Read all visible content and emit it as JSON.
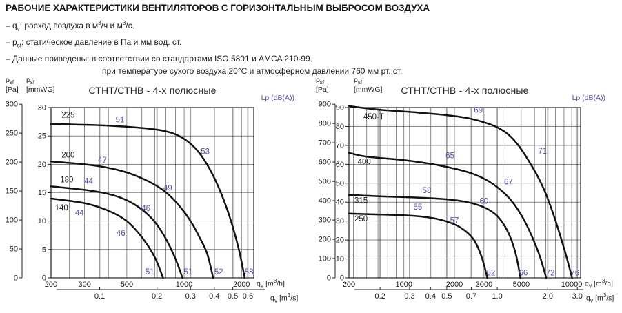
{
  "header": {
    "title": "РАБОЧИЕ ХАРАКТЕРИСТИКИ ВЕНТИЛЯТОРОВ С ГОРИЗОНТАЛЬНЫМ ВЫБРОСОМ ВОЗДУХА",
    "bullets": [
      "&ndash; q<sub>v</sub>: расход воздуха в м<sup>3</sup>/ч и м<sup>3</sup>/с.",
      "&ndash; p<sub>sf</sub>: статическое давление в Па и мм вод. ст.",
      "&ndash; Данные приведены: в соответствии со стандартами ISO 5801 и AMCA 210-99.",
      "при температуре сухого воздуха 20°С и атмосферном давлении 760 мм рт. ст."
    ]
  },
  "colors": {
    "accent_blue": "#5050a0",
    "curve": "#121212",
    "grid": "#3c3c3c",
    "grid_gray": "#9c9c9c",
    "axis": "#222222",
    "text": "#1b1b1b"
  },
  "chart_data": [
    {
      "id": "left",
      "type": "line",
      "title": "СТНТ/СТНВ - 4-х полюсные",
      "lp_label": "Lp (dB(A))",
      "y_pa_header": "p<sub>sf</sub><br>[Pa]",
      "y_mm_header": "p<sub>sf</sub><br>[mmWG]",
      "x_unit_h": "q<sub>v</sub> [m<sup>3</sup>/h]",
      "x_unit_s": "q<sub>v</sub> [m<sup>3</sup>/s]",
      "axes": {
        "x_scale": "log",
        "x_range": [
          200,
          2320
        ],
        "x_ticks_m3h": [
          200,
          300,
          500,
          1000,
          2000
        ],
        "x_ticks_m3s": [
          "0.1",
          "0.2",
          "0.3",
          "0.4",
          "0.5",
          "0.6"
        ],
        "y_pa_ticks": [
          300,
          250,
          200,
          150,
          100,
          50,
          0
        ],
        "y_mmwg_ticks": [
          30,
          25,
          20,
          15,
          10,
          5,
          0
        ],
        "mmwg_max": 30
      },
      "grid": {
        "v_minor_m3h": [
          250,
          300,
          400,
          500,
          600,
          700,
          800,
          900,
          1000,
          2000
        ],
        "v_gray_m3h": [
          360,
          720,
          1080,
          1440,
          1800,
          2160
        ],
        "h_mmwg": [
          5,
          10,
          15,
          20,
          25
        ]
      },
      "series": [
        {
          "name": "225",
          "name_pos": [
            246,
            281
          ],
          "points": [
            [
              200,
              266
            ],
            [
              400,
              263
            ],
            [
              600,
              259
            ],
            [
              750,
              255
            ],
            [
              900,
              248
            ],
            [
              1050,
              235
            ],
            [
              1200,
              216
            ],
            [
              1350,
              190
            ],
            [
              1500,
              160
            ],
            [
              1650,
              126
            ],
            [
              1800,
              88
            ],
            [
              1950,
              45
            ],
            [
              2080,
              0
            ]
          ],
          "noise_labels": [
            {
              "text": "51",
              "x": 460,
              "y": 273
            },
            {
              "text": "53",
              "x": 1290,
              "y": 218
            },
            {
              "text": "58",
              "x": 2190,
              "y": 10
            }
          ]
        },
        {
          "name": "200",
          "name_pos": [
            246,
            212
          ],
          "points": [
            [
              200,
              201
            ],
            [
              300,
              196
            ],
            [
              400,
              190
            ],
            [
              500,
              182
            ],
            [
              600,
              172
            ],
            [
              700,
              161
            ],
            [
              800,
              148
            ],
            [
              900,
              132
            ],
            [
              1000,
              114
            ],
            [
              1100,
              94
            ],
            [
              1200,
              71
            ],
            [
              1320,
              42
            ],
            [
              1420,
              0
            ]
          ],
          "noise_labels": [
            {
              "text": "47",
              "x": 372,
              "y": 203
            },
            {
              "text": "49",
              "x": 820,
              "y": 155
            },
            {
              "text": "52",
              "x": 1520,
              "y": 10
            }
          ]
        },
        {
          "name": "180",
          "name_pos": [
            242,
            169
          ],
          "points": [
            [
              200,
              158
            ],
            [
              300,
              152
            ],
            [
              400,
              145
            ],
            [
              500,
              134
            ],
            [
              600,
              118
            ],
            [
              700,
              97
            ],
            [
              800,
              68
            ],
            [
              900,
              33
            ],
            [
              980,
              0
            ]
          ],
          "noise_labels": [
            {
              "text": "44",
              "x": 315,
              "y": 167
            },
            {
              "text": "46",
              "x": 630,
              "y": 120
            },
            {
              "text": "51",
              "x": 1050,
              "y": 10
            }
          ]
        },
        {
          "name": "140",
          "name_pos": [
            227,
            121
          ],
          "points": [
            [
              200,
              137
            ],
            [
              300,
              129
            ],
            [
              400,
              116
            ],
            [
              500,
              98
            ],
            [
              600,
              70
            ],
            [
              700,
              36
            ],
            [
              775,
              0
            ]
          ],
          "noise_labels": [
            {
              "text": "44",
              "x": 282,
              "y": 112
            },
            {
              "text": "46",
              "x": 465,
              "y": 77
            },
            {
              "text": "51",
              "x": 660,
              "y": 10
            }
          ]
        }
      ]
    },
    {
      "id": "right",
      "type": "line",
      "title": "СТНТ/СТНВ - 4-х полюсные",
      "lp_label": "Lp (dB(A))",
      "y_pa_header": "p<sub>sf</sub><br>[Pa]",
      "y_mm_header": "p<sub>sf</sub><br>[mmWG]",
      "x_unit_h": "q<sub>v</sub> [m<sup>3</sup>/h]",
      "x_unit_s": "q<sub>v</sub> [m<sup>3</sup>/s]",
      "axes": {
        "x_scale": "log",
        "x_range": [
          470,
          11300
        ],
        "x_edge_label": "200",
        "x_ticks_m3h": [
          {
            "v": 200,
            "edge": true
          },
          1000,
          2000,
          3000,
          5000,
          10000
        ],
        "x_ticks_m3s": [
          "0.2",
          "0.3",
          "0.4",
          "0.5",
          "0.7",
          "1.0",
          "2.0",
          "3.0"
        ],
        "y_pa_ticks": [
          900,
          800,
          700,
          600,
          500,
          400,
          300,
          200,
          100,
          0
        ],
        "y_mmwg_ticks": [
          90,
          80,
          70,
          60,
          50,
          40,
          30,
          20,
          10,
          0
        ],
        "mmwg_max": 90
      },
      "grid": {
        "v_minor_m3h": [
          500,
          600,
          700,
          800,
          900,
          1000,
          2000,
          3000,
          4000,
          5000,
          6000,
          7000,
          8000,
          9000,
          10000
        ],
        "v_gray_m3h": [
          720,
          1080,
          1440,
          1800,
          2520,
          3600,
          7200,
          10800
        ],
        "h_mmwg": [
          10,
          20,
          30,
          40,
          50,
          60,
          70,
          80
        ]
      },
      "series": [
        {
          "name": "450-T",
          "name_pos": [
            660,
            835
          ],
          "points": [
            [
              200,
              890
            ],
            [
              700,
              872
            ],
            [
              1200,
              857
            ],
            [
              1800,
              843
            ],
            [
              2400,
              828
            ],
            [
              3000,
              806
            ],
            [
              3600,
              780
            ],
            [
              4200,
              742
            ],
            [
              4800,
              688
            ],
            [
              5400,
              622
            ],
            [
              6100,
              545
            ],
            [
              6900,
              450
            ],
            [
              7700,
              340
            ],
            [
              8500,
              225
            ],
            [
              9300,
              110
            ],
            [
              10050,
              0
            ]
          ],
          "noise_labels": [
            {
              "text": "69",
              "x": 2780,
              "y": 868
            },
            {
              "text": "71",
              "x": 6700,
              "y": 655
            },
            {
              "text": "76",
              "x": 10450,
              "y": 25
            }
          ]
        },
        {
          "name": "400",
          "name_pos": [
            580,
            601
          ],
          "points": [
            [
              200,
              648
            ],
            [
              600,
              628
            ],
            [
              1000,
              610
            ],
            [
              1500,
              588
            ],
            [
              2000,
              566
            ],
            [
              2500,
              543
            ],
            [
              3000,
              514
            ],
            [
              3500,
              478
            ],
            [
              4000,
              436
            ],
            [
              4500,
              386
            ],
            [
              5000,
              326
            ],
            [
              5500,
              258
            ],
            [
              6000,
              184
            ],
            [
              6500,
              104
            ],
            [
              7050,
              0
            ]
          ],
          "noise_labels": [
            {
              "text": "65",
              "x": 1880,
              "y": 632
            },
            {
              "text": "67",
              "x": 4200,
              "y": 497
            },
            {
              "text": "72",
              "x": 7450,
              "y": 25
            }
          ]
        },
        {
          "name": "315",
          "name_pos": [
            555,
            400
          ],
          "points": [
            [
              200,
              430
            ],
            [
              700,
              423
            ],
            [
              1200,
              416
            ],
            [
              1800,
              407
            ],
            [
              2400,
              392
            ],
            [
              3000,
              366
            ],
            [
              3500,
              330
            ],
            [
              3900,
              282
            ],
            [
              4300,
              212
            ],
            [
              4650,
              120
            ],
            [
              4950,
              0
            ]
          ],
          "noise_labels": [
            {
              "text": "58",
              "x": 1370,
              "y": 452
            },
            {
              "text": "60",
              "x": 3000,
              "y": 396
            },
            {
              "text": "66",
              "x": 5150,
              "y": 25
            }
          ]
        },
        {
          "name": "250",
          "name_pos": [
            555,
            305
          ],
          "points": [
            [
              200,
              333
            ],
            [
              600,
              330
            ],
            [
              1000,
              324
            ],
            [
              1400,
              313
            ],
            [
              1800,
              292
            ],
            [
              2200,
              258
            ],
            [
              2600,
              200
            ],
            [
              2900,
              110
            ],
            [
              3140,
              0
            ]
          ],
          "noise_labels": [
            {
              "text": "55",
              "x": 1210,
              "y": 366
            },
            {
              "text": "57",
              "x": 2000,
              "y": 297
            },
            {
              "text": "62",
              "x": 3300,
              "y": 25
            }
          ]
        }
      ]
    }
  ]
}
